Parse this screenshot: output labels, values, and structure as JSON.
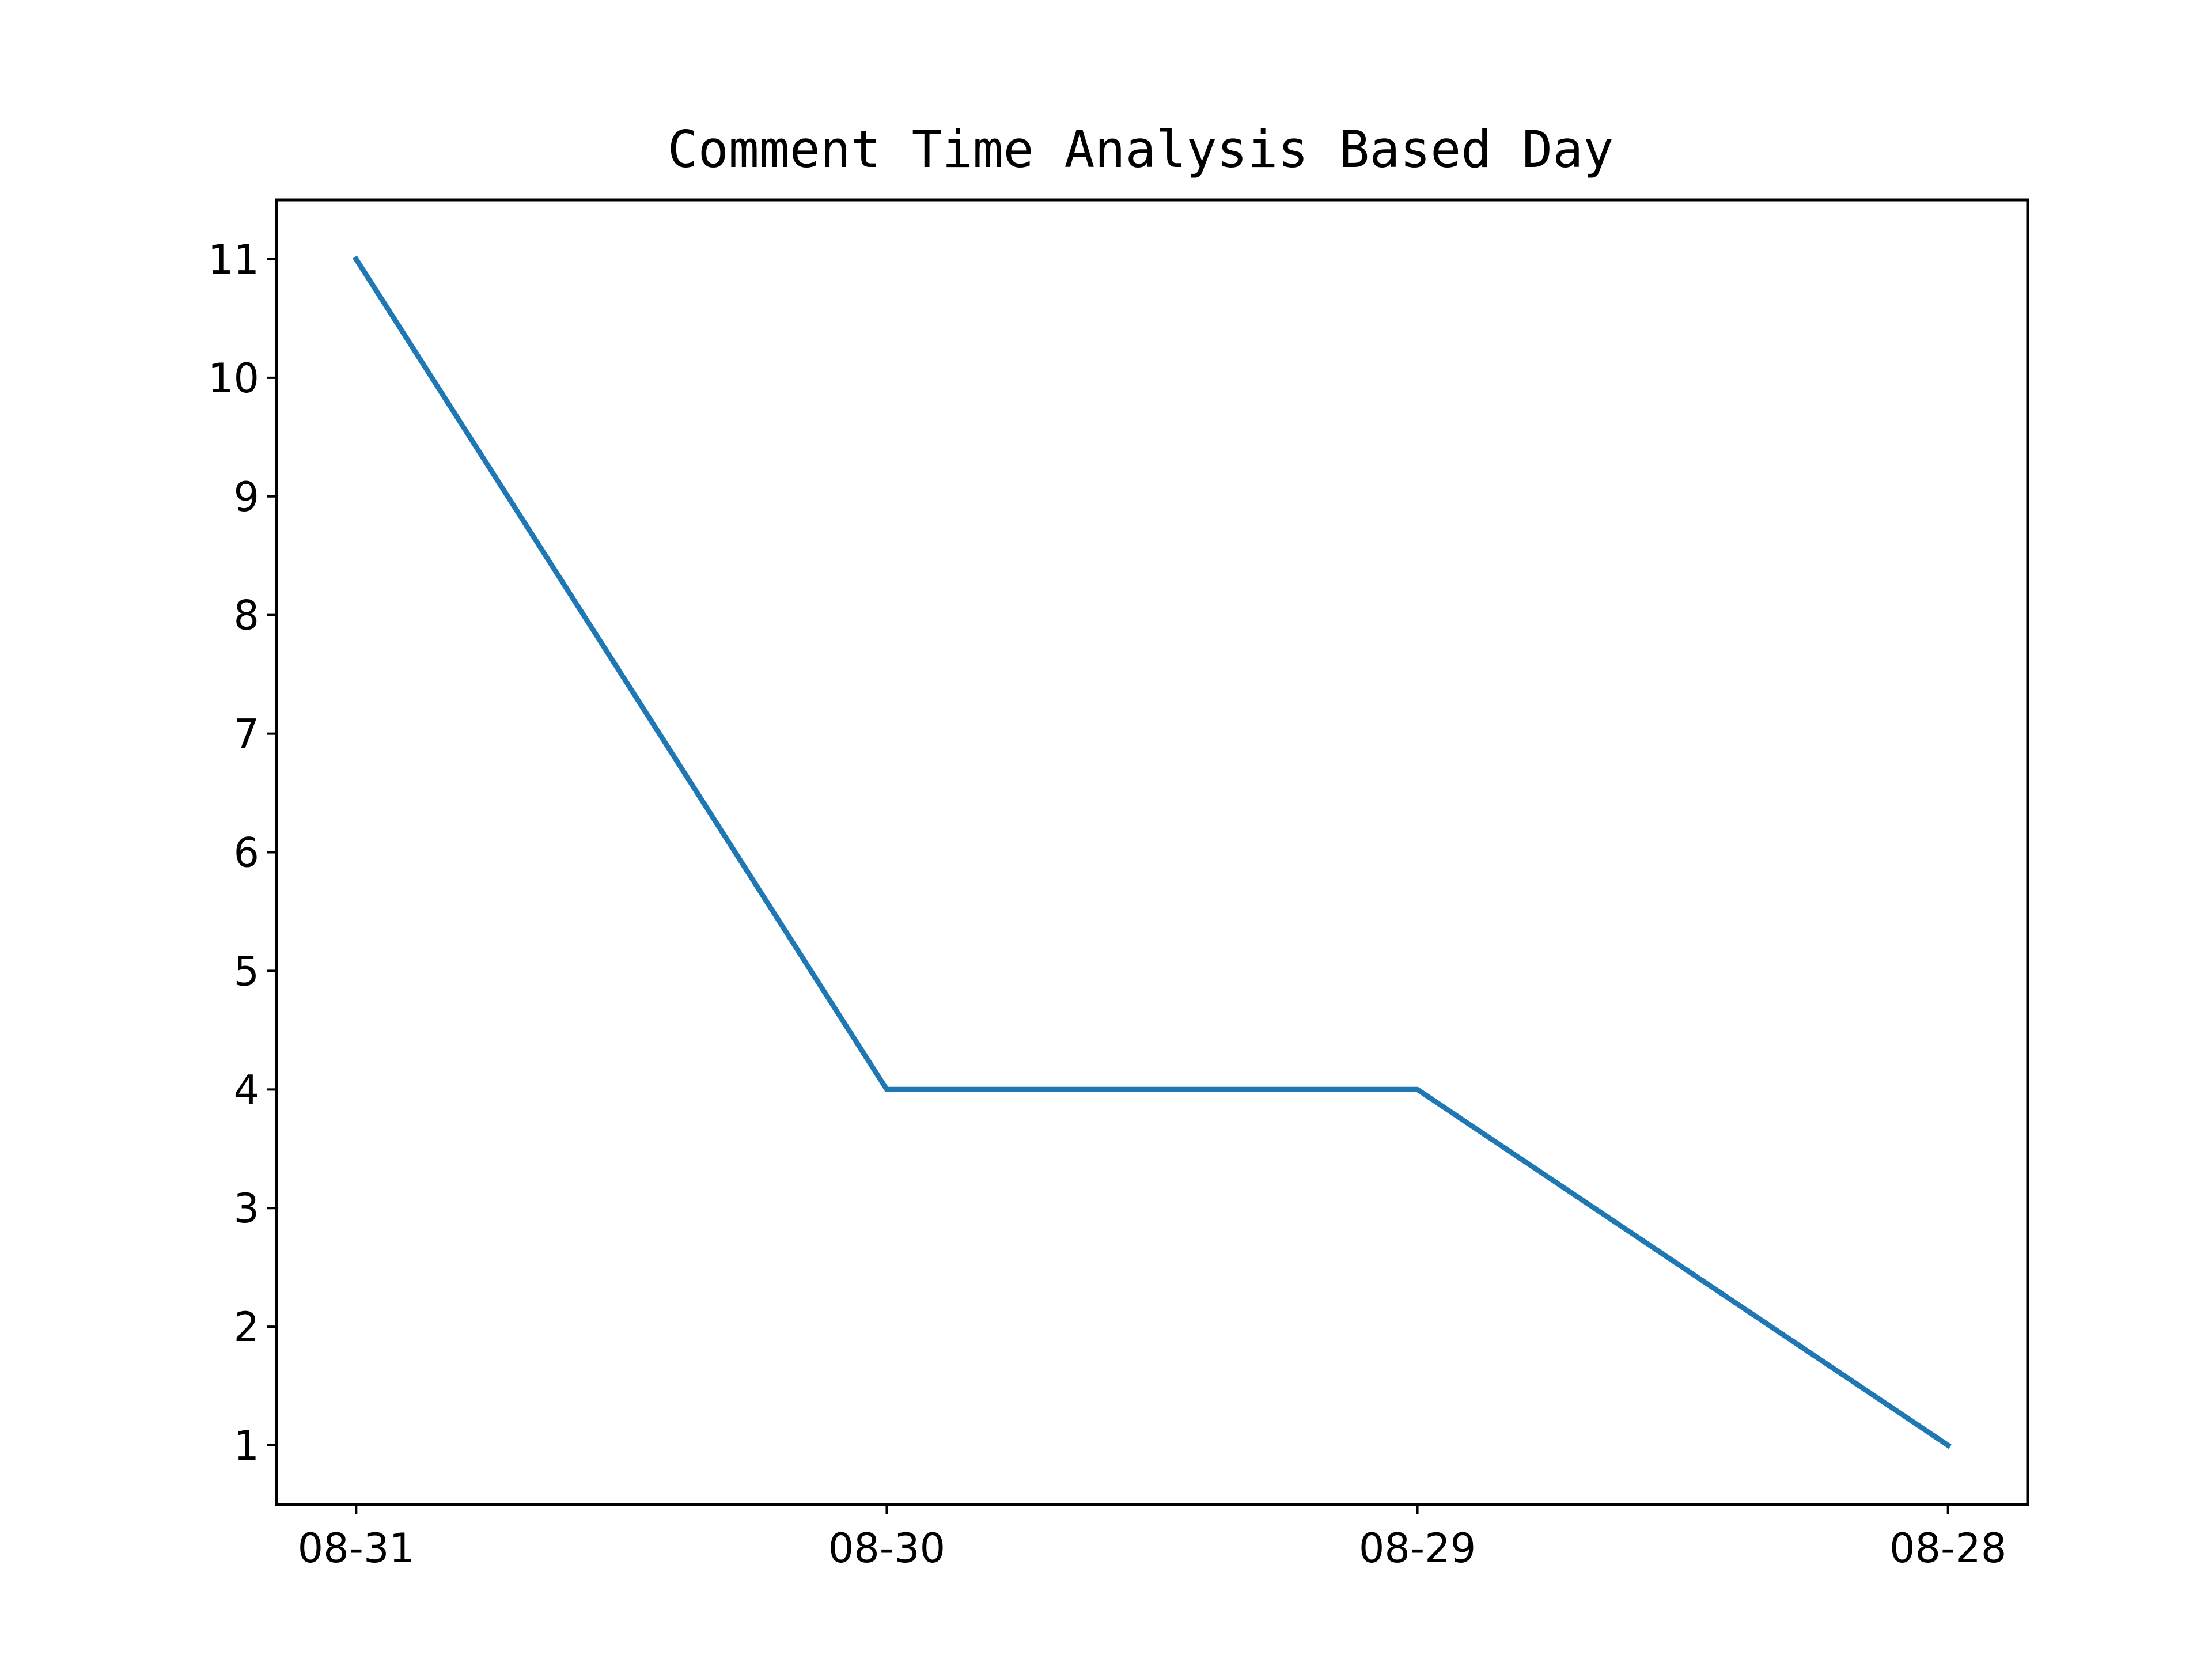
{
  "chart_data": {
    "type": "line",
    "title": "Comment Time Analysis Based Day",
    "xlabel": "",
    "ylabel": "",
    "categories": [
      "08-31",
      "08-30",
      "08-29",
      "08-28"
    ],
    "series": [
      {
        "values": [
          11,
          4,
          4,
          1
        ],
        "color": "#1f77b4"
      }
    ],
    "yticks": [
      1,
      2,
      3,
      4,
      5,
      6,
      7,
      8,
      9,
      10,
      11
    ],
    "ylim": [
      0.5,
      11.5
    ],
    "grid": false,
    "legend": "none"
  }
}
